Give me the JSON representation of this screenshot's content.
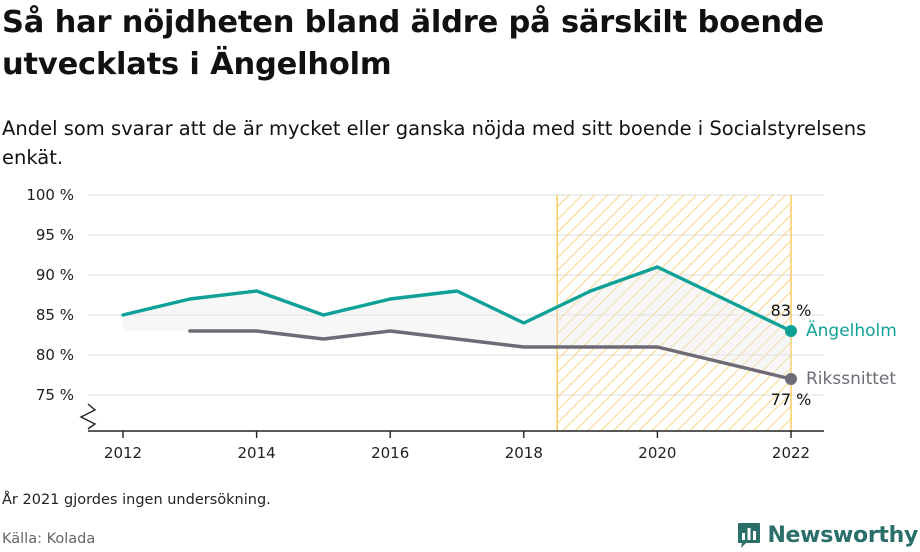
{
  "title": "Så har nöjdheten bland äldre på särskilt boende utvecklats i Ängelholm",
  "subtitle": "Andel som svarar att de är mycket eller ganska nöjda med sitt boende i Socialstyrelsens enkät.",
  "note": "År 2021 gjordes ingen undersökning.",
  "source": "Källa: Kolada",
  "brand": "Newsworthy",
  "colors": {
    "angelholm": "#0fa197",
    "riket": "#6e6b76",
    "highlight": "#f6c44a",
    "grid": "#dddddd"
  },
  "chart_data": {
    "type": "line",
    "x_ticks": [
      2012,
      2014,
      2016,
      2018,
      2020,
      2022
    ],
    "y_ticks": [
      75,
      80,
      85,
      90,
      95,
      100
    ],
    "y_tick_labels": [
      "75 %",
      "80 %",
      "85 %",
      "90 %",
      "95 %",
      "100 %"
    ],
    "ylim": [
      70.5,
      100
    ],
    "xlim": [
      2011.5,
      2022.5
    ],
    "axis_break": true,
    "highlight_range": [
      2018.5,
      2022
    ],
    "series": [
      {
        "name": "Ängelholm",
        "color": "#0fa197",
        "x": [
          2012,
          2013,
          2014,
          2015,
          2016,
          2017,
          2018,
          2019,
          2020,
          2022
        ],
        "y": [
          85,
          87,
          88,
          85,
          87,
          88,
          84,
          88,
          91,
          83
        ],
        "end_label": "83 %"
      },
      {
        "name": "Rikssnittet",
        "color": "#6e6b76",
        "x": [
          2013,
          2014,
          2015,
          2016,
          2017,
          2018,
          2019,
          2020,
          2022
        ],
        "y": [
          83,
          83,
          82,
          83,
          82,
          81,
          81,
          81,
          77
        ],
        "end_label": "77 %"
      }
    ]
  }
}
